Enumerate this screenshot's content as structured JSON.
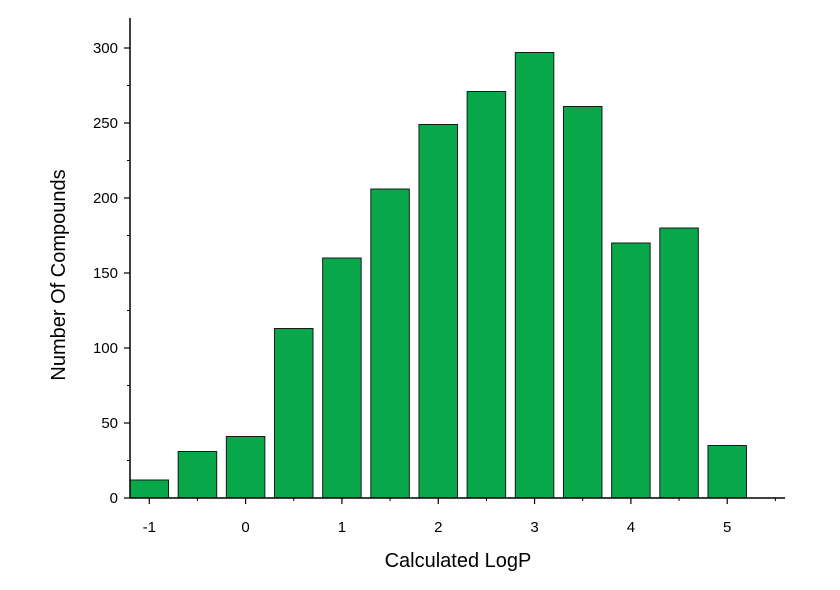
{
  "chart_data": {
    "type": "bar",
    "xlabel": "Calculated LogP",
    "ylabel": "Number Of Compounds",
    "xlim": [
      -1.2,
      5.6
    ],
    "ylim": [
      0,
      320
    ],
    "x_ticks": [
      -1,
      0,
      1,
      2,
      3,
      4,
      5
    ],
    "y_ticks": [
      0,
      50,
      100,
      150,
      200,
      250,
      300
    ],
    "bar_width": 0.4,
    "grid": false,
    "colors": {
      "bar_fill": "#08a84a",
      "bar_stroke": "#1a1a1a",
      "axis": "#000000"
    },
    "bars": [
      {
        "x": -1.0,
        "value": 12
      },
      {
        "x": -0.5,
        "value": 31
      },
      {
        "x": 0.0,
        "value": 41
      },
      {
        "x": 0.5,
        "value": 113
      },
      {
        "x": 1.0,
        "value": 160
      },
      {
        "x": 1.5,
        "value": 206
      },
      {
        "x": 2.0,
        "value": 249
      },
      {
        "x": 2.5,
        "value": 271
      },
      {
        "x": 3.0,
        "value": 297
      },
      {
        "x": 3.5,
        "value": 261
      },
      {
        "x": 4.0,
        "value": 170
      },
      {
        "x": 4.5,
        "value": 180
      },
      {
        "x": 5.0,
        "value": 35
      }
    ]
  }
}
